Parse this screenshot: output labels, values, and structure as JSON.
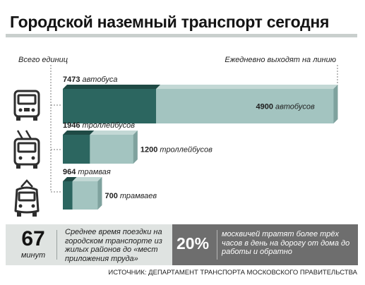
{
  "title": "Городской наземный транспорт сегодня",
  "legend_total": "Всего единиц",
  "legend_daily": "Ежедневно выходят на линию",
  "colors": {
    "total": "#2c6660",
    "daily": "#a3c4c0",
    "grey": "#6e6e6e",
    "light": "#dfe3e1"
  },
  "chart_data": {
    "type": "bar",
    "categories": [
      "автобусы",
      "троллейбусы",
      "трамваи"
    ],
    "series": [
      {
        "name": "Всего единиц",
        "values": [
          7473,
          1946,
          964
        ]
      },
      {
        "name": "Ежедневно выходят на линию",
        "values": [
          4900,
          1200,
          700
        ]
      }
    ],
    "total_labels": [
      "7473 автобуса",
      "1946 троллейбусов",
      "964 трамвая"
    ],
    "daily_labels": [
      "4900 автобусов",
      "1200 троллейбусов",
      "700 трамваев"
    ],
    "icons": [
      "bus-icon",
      "trolleybus-icon",
      "tram-icon"
    ]
  },
  "stats": {
    "avg_value": "67",
    "avg_unit": "минут",
    "avg_text": "Среднее время поездки на городском транспорте из жилых районов до «мест приложения труда»",
    "pct_value": "20%",
    "pct_text": "москвичей тратят более трёх часов в день на дорогу от дома до работы и обратно"
  },
  "source": "Источник: департамент транспорта московского правительства"
}
